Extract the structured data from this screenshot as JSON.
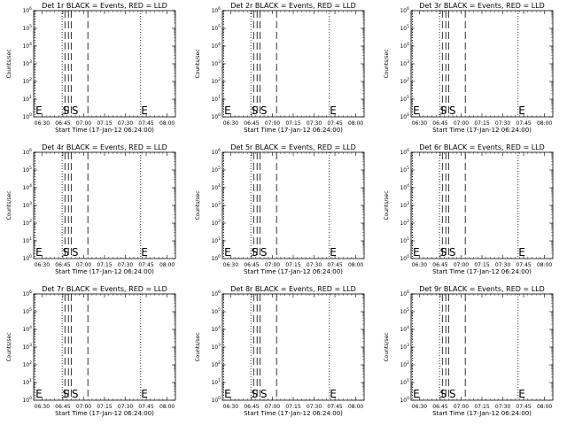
{
  "chart_data": [
    {
      "type": "line",
      "title": "Det 1r BLACK = Events, RED = LLD",
      "xlabel": "Start Time (17-Jan-12 06:24:00)",
      "ylabel": "Counts/sec",
      "x_ticks": [
        "06:30",
        "06:45",
        "07:00",
        "07:15",
        "07:30",
        "07:45",
        "08:00"
      ],
      "x_range_minutes_from_0630": [
        -6,
        96
      ],
      "y_scale": "log",
      "y_tick_exponents": [
        0,
        1,
        2,
        3,
        4,
        5,
        6
      ],
      "series": [],
      "vlines": [
        {
          "label": "E",
          "style": "dotted",
          "x_min": -5
        },
        {
          "label": "S",
          "style": "dotted",
          "x_min": 14.5
        },
        {
          "label": "",
          "style": "dashed",
          "x_min": 16.5
        },
        {
          "label": "",
          "style": "dashed",
          "x_min": 19
        },
        {
          "label": "S",
          "style": "dashed",
          "x_min": 21
        },
        {
          "label": "",
          "style": "dashed",
          "x_min": 33
        },
        {
          "label": "E",
          "style": "dotted",
          "x_min": 71
        }
      ]
    },
    {
      "type": "line",
      "title": "Det 2r BLACK = Events, RED = LLD",
      "xlabel": "Start Time (17-Jan-12 06:24:00)",
      "ylabel": "Counts/sec",
      "x_ticks": [
        "06:30",
        "06:45",
        "07:00",
        "07:15",
        "07:30",
        "07:45",
        "08:00"
      ],
      "x_range_minutes_from_0630": [
        -6,
        96
      ],
      "y_scale": "log",
      "y_tick_exponents": [
        0,
        1,
        2,
        3,
        4,
        5,
        6
      ],
      "series": [],
      "vlines": [
        {
          "label": "E",
          "style": "dotted",
          "x_min": -5
        },
        {
          "label": "S",
          "style": "dotted",
          "x_min": 14.5
        },
        {
          "label": "",
          "style": "dashed",
          "x_min": 16.5
        },
        {
          "label": "",
          "style": "dashed",
          "x_min": 19
        },
        {
          "label": "S",
          "style": "dashed",
          "x_min": 21
        },
        {
          "label": "",
          "style": "dashed",
          "x_min": 33
        },
        {
          "label": "E",
          "style": "dotted",
          "x_min": 71
        }
      ]
    },
    {
      "type": "line",
      "title": "Det 3r BLACK = Events, RED = LLD",
      "xlabel": "Start Time (17-Jan-12 06:24:00)",
      "ylabel": "Counts/sec",
      "x_ticks": [
        "06:30",
        "06:45",
        "07:00",
        "07:15",
        "07:30",
        "07:45",
        "08:00"
      ],
      "x_range_minutes_from_0630": [
        -6,
        96
      ],
      "y_scale": "log",
      "y_tick_exponents": [
        0,
        1,
        2,
        3,
        4,
        5,
        6
      ],
      "series": [],
      "vlines": [
        {
          "label": "E",
          "style": "dotted",
          "x_min": -5
        },
        {
          "label": "S",
          "style": "dotted",
          "x_min": 14.5
        },
        {
          "label": "",
          "style": "dashed",
          "x_min": 16.5
        },
        {
          "label": "",
          "style": "dashed",
          "x_min": 19
        },
        {
          "label": "S",
          "style": "dashed",
          "x_min": 21
        },
        {
          "label": "",
          "style": "dashed",
          "x_min": 33
        },
        {
          "label": "E",
          "style": "dotted",
          "x_min": 71
        }
      ]
    },
    {
      "type": "line",
      "title": "Det 4r BLACK = Events, RED = LLD",
      "xlabel": "Start Time (17-Jan-12 06:24:00)",
      "ylabel": "Counts/sec",
      "x_ticks": [
        "06:30",
        "06:45",
        "07:00",
        "07:15",
        "07:30",
        "07:45",
        "08:00"
      ],
      "x_range_minutes_from_0630": [
        -6,
        96
      ],
      "y_scale": "log",
      "y_tick_exponents": [
        0,
        1,
        2,
        3,
        4,
        5,
        6
      ],
      "series": [],
      "vlines": [
        {
          "label": "E",
          "style": "dotted",
          "x_min": -5
        },
        {
          "label": "S",
          "style": "dotted",
          "x_min": 14.5
        },
        {
          "label": "",
          "style": "dashed",
          "x_min": 16.5
        },
        {
          "label": "",
          "style": "dashed",
          "x_min": 19
        },
        {
          "label": "S",
          "style": "dashed",
          "x_min": 21
        },
        {
          "label": "",
          "style": "dashed",
          "x_min": 33
        },
        {
          "label": "E",
          "style": "dotted",
          "x_min": 71
        }
      ]
    },
    {
      "type": "line",
      "title": "Det 5r BLACK = Events, RED = LLD",
      "xlabel": "Start Time (17-Jan-12 06:24:00)",
      "ylabel": "Counts/sec",
      "x_ticks": [
        "06:30",
        "06:45",
        "07:00",
        "07:15",
        "07:30",
        "07:45",
        "08:00"
      ],
      "x_range_minutes_from_0630": [
        -6,
        96
      ],
      "y_scale": "log",
      "y_tick_exponents": [
        0,
        1,
        2,
        3,
        4,
        5,
        6
      ],
      "series": [],
      "vlines": [
        {
          "label": "E",
          "style": "dotted",
          "x_min": -5
        },
        {
          "label": "S",
          "style": "dotted",
          "x_min": 14.5
        },
        {
          "label": "",
          "style": "dashed",
          "x_min": 16.5
        },
        {
          "label": "",
          "style": "dashed",
          "x_min": 19
        },
        {
          "label": "S",
          "style": "dashed",
          "x_min": 21
        },
        {
          "label": "",
          "style": "dashed",
          "x_min": 33
        },
        {
          "label": "E",
          "style": "dotted",
          "x_min": 71
        }
      ]
    },
    {
      "type": "line",
      "title": "Det 6r BLACK = Events, RED = LLD",
      "xlabel": "Start Time (17-Jan-12 06:24:00)",
      "ylabel": "Counts/sec",
      "x_ticks": [
        "06:30",
        "06:45",
        "07:00",
        "07:15",
        "07:30",
        "07:45",
        "08:00"
      ],
      "x_range_minutes_from_0630": [
        -6,
        96
      ],
      "y_scale": "log",
      "y_tick_exponents": [
        0,
        1,
        2,
        3,
        4,
        5,
        6
      ],
      "series": [],
      "vlines": [
        {
          "label": "E",
          "style": "dotted",
          "x_min": -5
        },
        {
          "label": "S",
          "style": "dotted",
          "x_min": 14.5
        },
        {
          "label": "",
          "style": "dashed",
          "x_min": 16.5
        },
        {
          "label": "",
          "style": "dashed",
          "x_min": 19
        },
        {
          "label": "S",
          "style": "dashed",
          "x_min": 21
        },
        {
          "label": "",
          "style": "dashed",
          "x_min": 33
        },
        {
          "label": "E",
          "style": "dotted",
          "x_min": 71
        }
      ]
    },
    {
      "type": "line",
      "title": "Det 7r BLACK = Events, RED = LLD",
      "xlabel": "Start Time (17-Jan-12 06:24:00)",
      "ylabel": "Counts/sec",
      "x_ticks": [
        "06:30",
        "06:45",
        "07:00",
        "07:15",
        "07:30",
        "07:45",
        "08:00"
      ],
      "x_range_minutes_from_0630": [
        -6,
        96
      ],
      "y_scale": "log",
      "y_tick_exponents": [
        0,
        1,
        2,
        3,
        4,
        5,
        6
      ],
      "series": [],
      "vlines": [
        {
          "label": "E",
          "style": "dotted",
          "x_min": -5
        },
        {
          "label": "S",
          "style": "dotted",
          "x_min": 14.5
        },
        {
          "label": "",
          "style": "dashed",
          "x_min": 16.5
        },
        {
          "label": "",
          "style": "dashed",
          "x_min": 19
        },
        {
          "label": "S",
          "style": "dashed",
          "x_min": 21
        },
        {
          "label": "",
          "style": "dashed",
          "x_min": 33
        },
        {
          "label": "E",
          "style": "dotted",
          "x_min": 71
        }
      ]
    },
    {
      "type": "line",
      "title": "Det 8r BLACK = Events, RED = LLD",
      "xlabel": "Start Time (17-Jan-12 06:24:00)",
      "ylabel": "Counts/sec",
      "x_ticks": [
        "06:30",
        "06:45",
        "07:00",
        "07:15",
        "07:30",
        "07:45",
        "08:00"
      ],
      "x_range_minutes_from_0630": [
        -6,
        96
      ],
      "y_scale": "log",
      "y_tick_exponents": [
        0,
        1,
        2,
        3,
        4,
        5,
        6
      ],
      "series": [],
      "vlines": [
        {
          "label": "E",
          "style": "dotted",
          "x_min": -5
        },
        {
          "label": "S",
          "style": "dotted",
          "x_min": 14.5
        },
        {
          "label": "",
          "style": "dashed",
          "x_min": 16.5
        },
        {
          "label": "",
          "style": "dashed",
          "x_min": 19
        },
        {
          "label": "S",
          "style": "dashed",
          "x_min": 21
        },
        {
          "label": "",
          "style": "dashed",
          "x_min": 33
        },
        {
          "label": "E",
          "style": "dotted",
          "x_min": 71
        }
      ]
    },
    {
      "type": "line",
      "title": "Det 9r BLACK = Events, RED = LLD",
      "xlabel": "Start Time (17-Jan-12 06:24:00)",
      "ylabel": "Counts/sec",
      "x_ticks": [
        "06:30",
        "06:45",
        "07:00",
        "07:15",
        "07:30",
        "07:45",
        "08:00"
      ],
      "x_range_minutes_from_0630": [
        -6,
        96
      ],
      "y_scale": "log",
      "y_tick_exponents": [
        0,
        1,
        2,
        3,
        4,
        5,
        6
      ],
      "series": [],
      "vlines": [
        {
          "label": "E",
          "style": "dotted",
          "x_min": -5
        },
        {
          "label": "S",
          "style": "dotted",
          "x_min": 14.5
        },
        {
          "label": "",
          "style": "dashed",
          "x_min": 16.5
        },
        {
          "label": "",
          "style": "dashed",
          "x_min": 19
        },
        {
          "label": "S",
          "style": "dashed",
          "x_min": 21
        },
        {
          "label": "",
          "style": "dashed",
          "x_min": 33
        },
        {
          "label": "E",
          "style": "dotted",
          "x_min": 71
        }
      ]
    }
  ]
}
